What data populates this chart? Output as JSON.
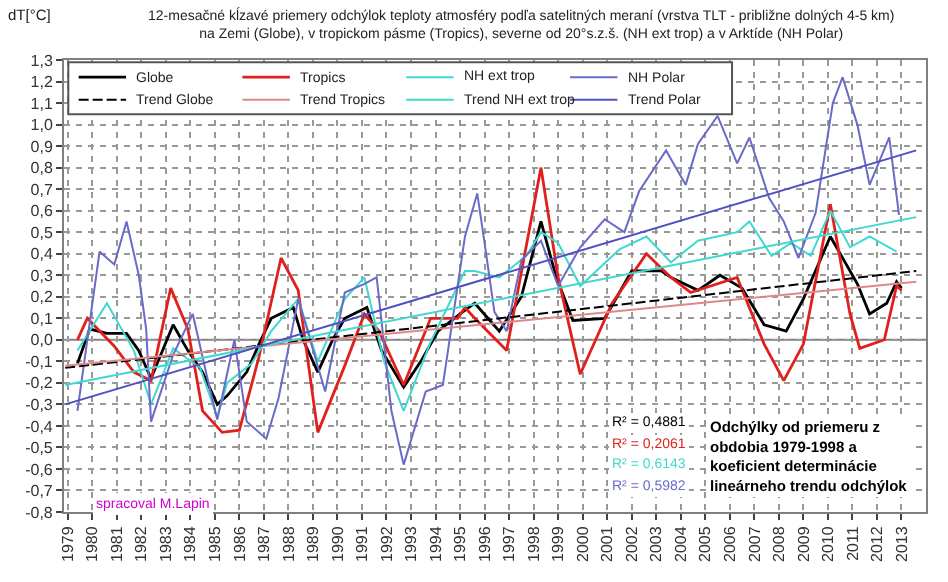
{
  "chart_data": {
    "type": "line",
    "title": "12-mesačné kĺzavé priemery odchýlok teploty atmosféry podľa satelitných meraní (vrstva TLT - približne dolných 4-5 km) na Zemi (Globe), v tropickom pásme (Tropics), severne od 20°s.z.š. (NH ext trop) a v Arktíde (NH Polar)",
    "ylabel": "dT[°C]",
    "xlim": [
      1978.85,
      2014.0
    ],
    "xticks": [
      1979,
      1980,
      1981,
      1982,
      1983,
      1984,
      1985,
      1986,
      1987,
      1988,
      1989,
      1990,
      1991,
      1992,
      1993,
      1994,
      1995,
      1996,
      1997,
      1998,
      1999,
      2000,
      2001,
      2002,
      2003,
      2004,
      2005,
      2006,
      2007,
      2008,
      2009,
      2010,
      2011,
      2012,
      2013
    ],
    "ylim": [
      -0.8,
      1.3
    ],
    "yticks": [
      {
        "value": -0.8,
        "label": "-0,8"
      },
      {
        "value": -0.7,
        "label": "-0,7"
      },
      {
        "value": -0.6,
        "label": "-0,6"
      },
      {
        "value": -0.5,
        "label": "-0,5"
      },
      {
        "value": -0.4,
        "label": "-0,4"
      },
      {
        "value": -0.3,
        "label": "-0,3"
      },
      {
        "value": -0.2,
        "label": "-0,2"
      },
      {
        "value": -0.1,
        "label": "-0,1"
      },
      {
        "value": 0,
        "label": "0,0"
      },
      {
        "value": 0.1,
        "label": "0,1"
      },
      {
        "value": 0.2,
        "label": "0,2"
      },
      {
        "value": 0.3,
        "label": "0,3"
      },
      {
        "value": 0.4,
        "label": "0,4"
      },
      {
        "value": 0.5,
        "label": "0,5"
      },
      {
        "value": 0.6,
        "label": "0,6"
      },
      {
        "value": 0.7,
        "label": "0,7"
      },
      {
        "value": 0.8,
        "label": "0,8"
      },
      {
        "value": 0.9,
        "label": "0,9"
      },
      {
        "value": 1.0,
        "label": "1,0"
      },
      {
        "value": 1.1,
        "label": "1,1"
      },
      {
        "value": 1.2,
        "label": "1,2"
      },
      {
        "value": 1.3,
        "label": "1,3"
      }
    ],
    "grid": true,
    "legend": "top left",
    "marker": "none",
    "ref_lines": [
      {
        "axis": "y",
        "value": 0,
        "color": "#808080"
      }
    ],
    "series": [
      {
        "name": "Globe",
        "color": "#000000",
        "x": [
          1979.4,
          1979.9,
          1980.6,
          1981.4,
          1981.9,
          1982.4,
          1983.3,
          1983.9,
          1984.5,
          1985.1,
          1985.5,
          1986.3,
          1986.8,
          1987.3,
          1988.2,
          1988.6,
          1989.2,
          1989.8,
          1990.3,
          1991.2,
          1991.8,
          1992.7,
          1993.4,
          1994.1,
          1995.0,
          1995.6,
          1996.6,
          1997.5,
          1998.3,
          1998.9,
          1999.6,
          2000.9,
          2002.0,
          2003.2,
          2003.6,
          2004.7,
          2005.6,
          2006.5,
          2007.4,
          2008.3,
          2009.0,
          2010.1,
          2011.2,
          2011.7,
          2012.4,
          2012.8,
          2013.0
        ],
        "values": [
          -0.11,
          0.05,
          0.03,
          0.03,
          -0.05,
          -0.18,
          0.07,
          -0.05,
          -0.15,
          -0.3,
          -0.26,
          -0.15,
          -0.02,
          0.1,
          0.15,
          0.0,
          -0.15,
          0.0,
          0.1,
          0.15,
          -0.05,
          -0.22,
          -0.1,
          0.04,
          0.12,
          0.17,
          0.04,
          0.2,
          0.55,
          0.3,
          0.09,
          0.1,
          0.32,
          0.32,
          0.29,
          0.23,
          0.3,
          0.24,
          0.07,
          0.04,
          0.19,
          0.48,
          0.26,
          0.12,
          0.17,
          0.27,
          0.24
        ]
      },
      {
        "name": "Tropics",
        "color": "#e0201c",
        "x": [
          1979.4,
          1979.8,
          1980.9,
          1981.7,
          1982.4,
          1983.2,
          1983.9,
          1984.5,
          1985.3,
          1986.0,
          1986.8,
          1987.7,
          1988.4,
          1989.2,
          1990.3,
          1991.1,
          1991.7,
          1992.7,
          1993.8,
          1994.9,
          1995.2,
          1995.6,
          1996.9,
          1998.3,
          1999.0,
          1999.9,
          2001.2,
          2002.6,
          2003.6,
          2004.4,
          2006.3,
          2007.4,
          2008.2,
          2009.0,
          2010.1,
          2010.9,
          2011.3,
          2012.3,
          2012.8,
          2013.0
        ],
        "values": [
          0.0,
          0.1,
          -0.03,
          -0.15,
          -0.19,
          0.24,
          0.05,
          -0.33,
          -0.43,
          -0.42,
          -0.08,
          0.38,
          0.23,
          -0.43,
          -0.12,
          0.12,
          0.04,
          -0.21,
          0.1,
          0.1,
          0.15,
          0.1,
          -0.05,
          0.8,
          0.29,
          -0.16,
          0.17,
          0.4,
          0.29,
          0.22,
          0.29,
          -0.02,
          -0.19,
          -0.02,
          0.63,
          0.12,
          -0.04,
          0.0,
          0.25,
          0.23
        ]
      },
      {
        "name": "NH ext trop",
        "color": "#40d8d0",
        "x": [
          1979.4,
          1980.6,
          1981.7,
          1982.4,
          1983.3,
          1984.4,
          1985.1,
          1985.5,
          1986.5,
          1987.3,
          1988.4,
          1989.2,
          1990.3,
          1991.1,
          1991.9,
          1992.7,
          1993.8,
          1995.2,
          1995.6,
          1996.6,
          1997.7,
          1998.3,
          1999.0,
          1999.9,
          2001.5,
          2002.6,
          2003.6,
          2004.7,
          2006.3,
          2006.8,
          2007.7,
          2008.5,
          2009.3,
          2010.1,
          2010.9,
          2011.7,
          2012.8
        ],
        "values": [
          -0.05,
          0.17,
          -0.05,
          -0.3,
          -0.04,
          -0.13,
          -0.36,
          -0.2,
          -0.11,
          0.04,
          0.19,
          -0.1,
          0.19,
          0.29,
          -0.1,
          -0.33,
          -0.01,
          0.32,
          0.32,
          0.29,
          0.39,
          0.5,
          0.45,
          0.25,
          0.42,
          0.48,
          0.36,
          0.46,
          0.5,
          0.55,
          0.39,
          0.45,
          0.39,
          0.6,
          0.43,
          0.48,
          0.41
        ]
      },
      {
        "name": "NH Polar",
        "color": "#6a6ac8",
        "x": [
          1979.4,
          1980.3,
          1980.9,
          1981.4,
          1981.9,
          1982.2,
          1982.4,
          1983.3,
          1984.1,
          1984.8,
          1985.1,
          1985.8,
          1986.3,
          1987.1,
          1987.6,
          1988.4,
          1989.5,
          1990.3,
          1991.1,
          1991.6,
          1992.2,
          1992.7,
          1993.6,
          1994.3,
          1995.2,
          1995.7,
          1996.0,
          1996.4,
          1996.9,
          1997.5,
          1998.3,
          1999.0,
          1999.9,
          2000.9,
          2001.7,
          2002.3,
          2003.4,
          2004.2,
          2004.7,
          2005.5,
          2006.3,
          2006.8,
          2007.6,
          2008.2,
          2008.8,
          2009.5,
          2010.2,
          2010.6,
          2011.2,
          2011.7,
          2012.5,
          2012.9
        ],
        "values": [
          -0.33,
          0.41,
          0.35,
          0.55,
          0.3,
          0.05,
          -0.38,
          -0.07,
          0.12,
          -0.23,
          -0.37,
          0.0,
          -0.38,
          -0.46,
          -0.27,
          0.19,
          -0.24,
          0.22,
          0.26,
          0.29,
          -0.33,
          -0.58,
          -0.24,
          -0.21,
          0.48,
          0.68,
          0.45,
          0.13,
          0.04,
          0.37,
          0.46,
          0.25,
          0.43,
          0.56,
          0.5,
          0.69,
          0.88,
          0.72,
          0.91,
          1.04,
          0.82,
          0.94,
          0.66,
          0.55,
          0.38,
          0.59,
          1.1,
          1.22,
          1.0,
          0.72,
          0.94,
          0.58
        ]
      },
      {
        "name": "Trend Globe",
        "color": "#000000",
        "line_style": "dashed",
        "x": [
          1978.9,
          2013.6
        ],
        "values": [
          -0.13,
          0.32
        ]
      },
      {
        "name": "Trend Tropics",
        "color": "#e08888",
        "x": [
          1978.9,
          2013.6
        ],
        "values": [
          -0.12,
          0.27
        ]
      },
      {
        "name": "Trend NH ext trop",
        "color": "#40d8d0",
        "x": [
          1978.9,
          2013.6
        ],
        "values": [
          -0.21,
          0.57
        ]
      },
      {
        "name": "Trend Polar",
        "color": "#5050c0",
        "x": [
          1978.9,
          2013.6
        ],
        "values": [
          -0.3,
          0.88
        ]
      }
    ],
    "annotations": [
      "R² = 0,4881",
      "R² = 0,2061",
      "R² = 0,6143",
      "R² = 0,5982",
      "Odchýlky od priemeru z obdobia 1979-1998 a koeficient determinácie lineárneho trendu odchýlok",
      "spracoval M.Lapin"
    ]
  }
}
